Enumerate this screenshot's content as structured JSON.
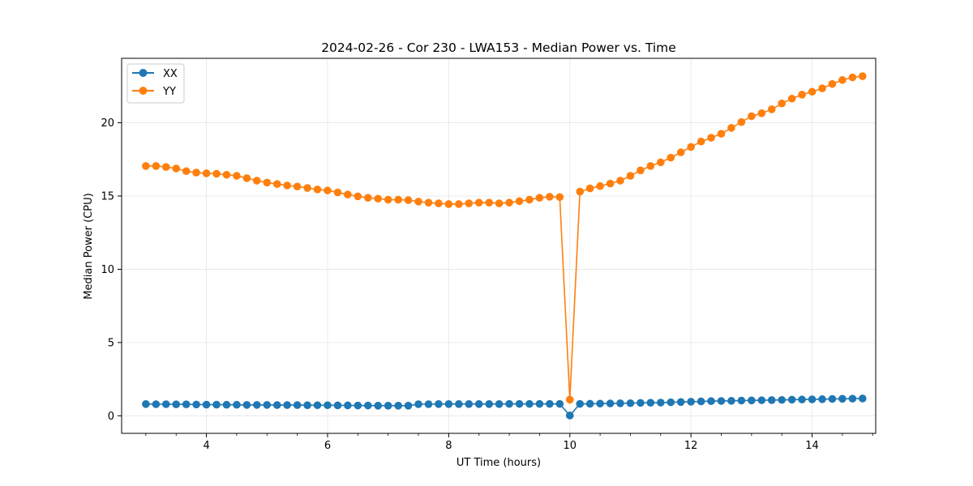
{
  "chart_data": {
    "type": "line",
    "title": "2024-02-26 - Cor 230 - LWA153 - Median Power vs. Time",
    "xlabel": "UT Time (hours)",
    "ylabel": "Median Power (CPU)",
    "xlim": [
      2.6,
      15.05
    ],
    "ylim": [
      -1.2,
      24.4
    ],
    "xticks": [
      4,
      6,
      8,
      10,
      12,
      14
    ],
    "yticks": [
      0,
      5,
      10,
      15,
      20
    ],
    "grid": true,
    "legend_position": "upper-left",
    "x": [
      3.0,
      3.167,
      3.333,
      3.5,
      3.667,
      3.833,
      4.0,
      4.167,
      4.333,
      4.5,
      4.667,
      4.833,
      5.0,
      5.167,
      5.333,
      5.5,
      5.667,
      5.833,
      6.0,
      6.167,
      6.333,
      6.5,
      6.667,
      6.833,
      7.0,
      7.167,
      7.333,
      7.5,
      7.667,
      7.833,
      8.0,
      8.167,
      8.333,
      8.5,
      8.667,
      8.833,
      9.0,
      9.167,
      9.333,
      9.5,
      9.667,
      9.833,
      10.0,
      10.167,
      10.333,
      10.5,
      10.667,
      10.833,
      11.0,
      11.167,
      11.333,
      11.5,
      11.667,
      11.833,
      12.0,
      12.167,
      12.333,
      12.5,
      12.667,
      12.833,
      13.0,
      13.167,
      13.333,
      13.5,
      13.667,
      13.833,
      14.0,
      14.167,
      14.333,
      14.5,
      14.667,
      14.833
    ],
    "series": [
      {
        "name": "XX",
        "color": "#1f77b4",
        "values": [
          0.8,
          0.79,
          0.79,
          0.78,
          0.78,
          0.77,
          0.76,
          0.76,
          0.75,
          0.75,
          0.74,
          0.74,
          0.74,
          0.73,
          0.73,
          0.73,
          0.72,
          0.72,
          0.72,
          0.71,
          0.71,
          0.7,
          0.7,
          0.69,
          0.69,
          0.69,
          0.69,
          0.79,
          0.79,
          0.8,
          0.8,
          0.8,
          0.8,
          0.8,
          0.8,
          0.8,
          0.81,
          0.81,
          0.81,
          0.81,
          0.81,
          0.81,
          0.02,
          0.81,
          0.82,
          0.83,
          0.84,
          0.85,
          0.86,
          0.88,
          0.89,
          0.9,
          0.92,
          0.94,
          0.96,
          0.98,
          1.0,
          1.01,
          1.02,
          1.04,
          1.05,
          1.06,
          1.07,
          1.08,
          1.1,
          1.11,
          1.12,
          1.13,
          1.15,
          1.16,
          1.17,
          1.18
        ]
      },
      {
        "name": "YY",
        "color": "#ff7f0e",
        "values": [
          17.05,
          17.05,
          16.98,
          16.88,
          16.7,
          16.6,
          16.55,
          16.52,
          16.45,
          16.38,
          16.22,
          16.05,
          15.92,
          15.82,
          15.72,
          15.65,
          15.55,
          15.45,
          15.38,
          15.25,
          15.1,
          14.98,
          14.88,
          14.82,
          14.75,
          14.75,
          14.72,
          14.62,
          14.55,
          14.5,
          14.45,
          14.45,
          14.5,
          14.55,
          14.55,
          14.5,
          14.55,
          14.65,
          14.75,
          14.88,
          14.95,
          14.93,
          1.1,
          15.3,
          15.52,
          15.68,
          15.85,
          16.05,
          16.38,
          16.75,
          17.05,
          17.3,
          17.62,
          17.98,
          18.35,
          18.72,
          18.98,
          19.25,
          19.65,
          20.05,
          20.45,
          20.65,
          20.92,
          21.32,
          21.65,
          21.92,
          22.12,
          22.35,
          22.65,
          22.92,
          23.1,
          23.18
        ]
      }
    ]
  }
}
